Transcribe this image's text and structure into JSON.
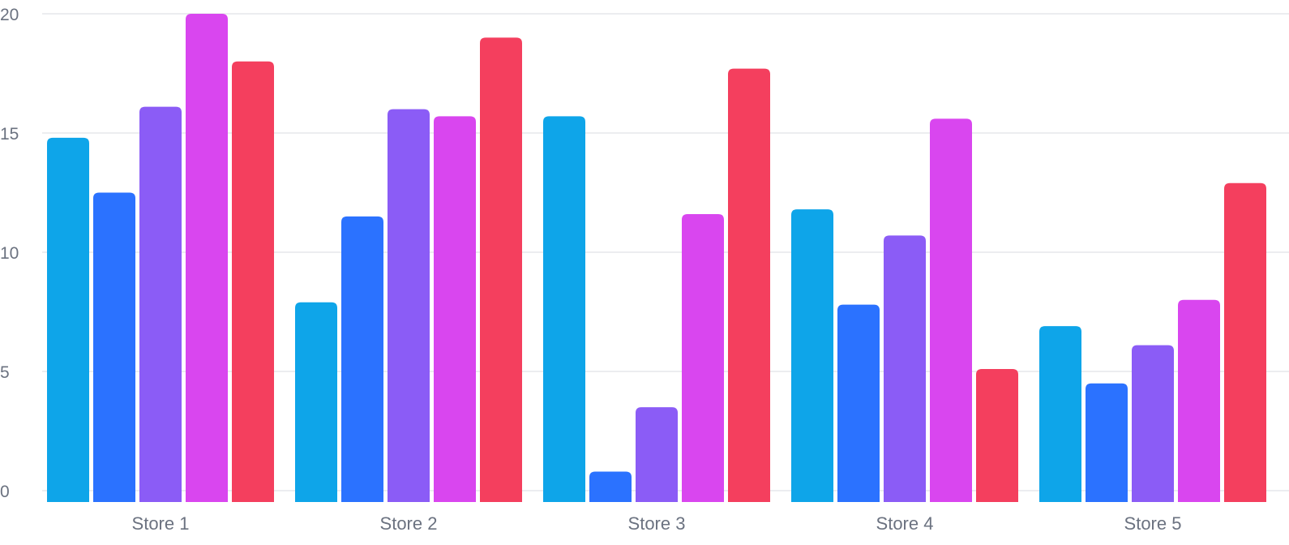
{
  "chart_data": {
    "type": "bar",
    "categories": [
      "Store 1",
      "Store 2",
      "Store 3",
      "Store 4",
      "Store 5"
    ],
    "series": [
      {
        "values": [
          14.8,
          7.9,
          15.7,
          11.8,
          6.9
        ],
        "color": "#0ea5e9"
      },
      {
        "values": [
          12.5,
          11.5,
          0.8,
          7.8,
          4.5
        ],
        "color": "#2b72ff"
      },
      {
        "values": [
          16.1,
          16.0,
          3.5,
          10.7,
          6.1
        ],
        "color": "#8b5cf6"
      },
      {
        "values": [
          20.0,
          15.7,
          11.6,
          15.6,
          8.0
        ],
        "color": "#d946ef"
      },
      {
        "values": [
          18.0,
          19.0,
          17.7,
          5.1,
          12.9
        ],
        "color": "#f43f5e"
      }
    ],
    "y_ticks": [
      "0",
      "5",
      "10",
      "15",
      "20"
    ],
    "ylim": [
      0,
      20
    ],
    "grid": true,
    "legend": "none",
    "title": "",
    "xlabel": "",
    "ylabel": ""
  }
}
